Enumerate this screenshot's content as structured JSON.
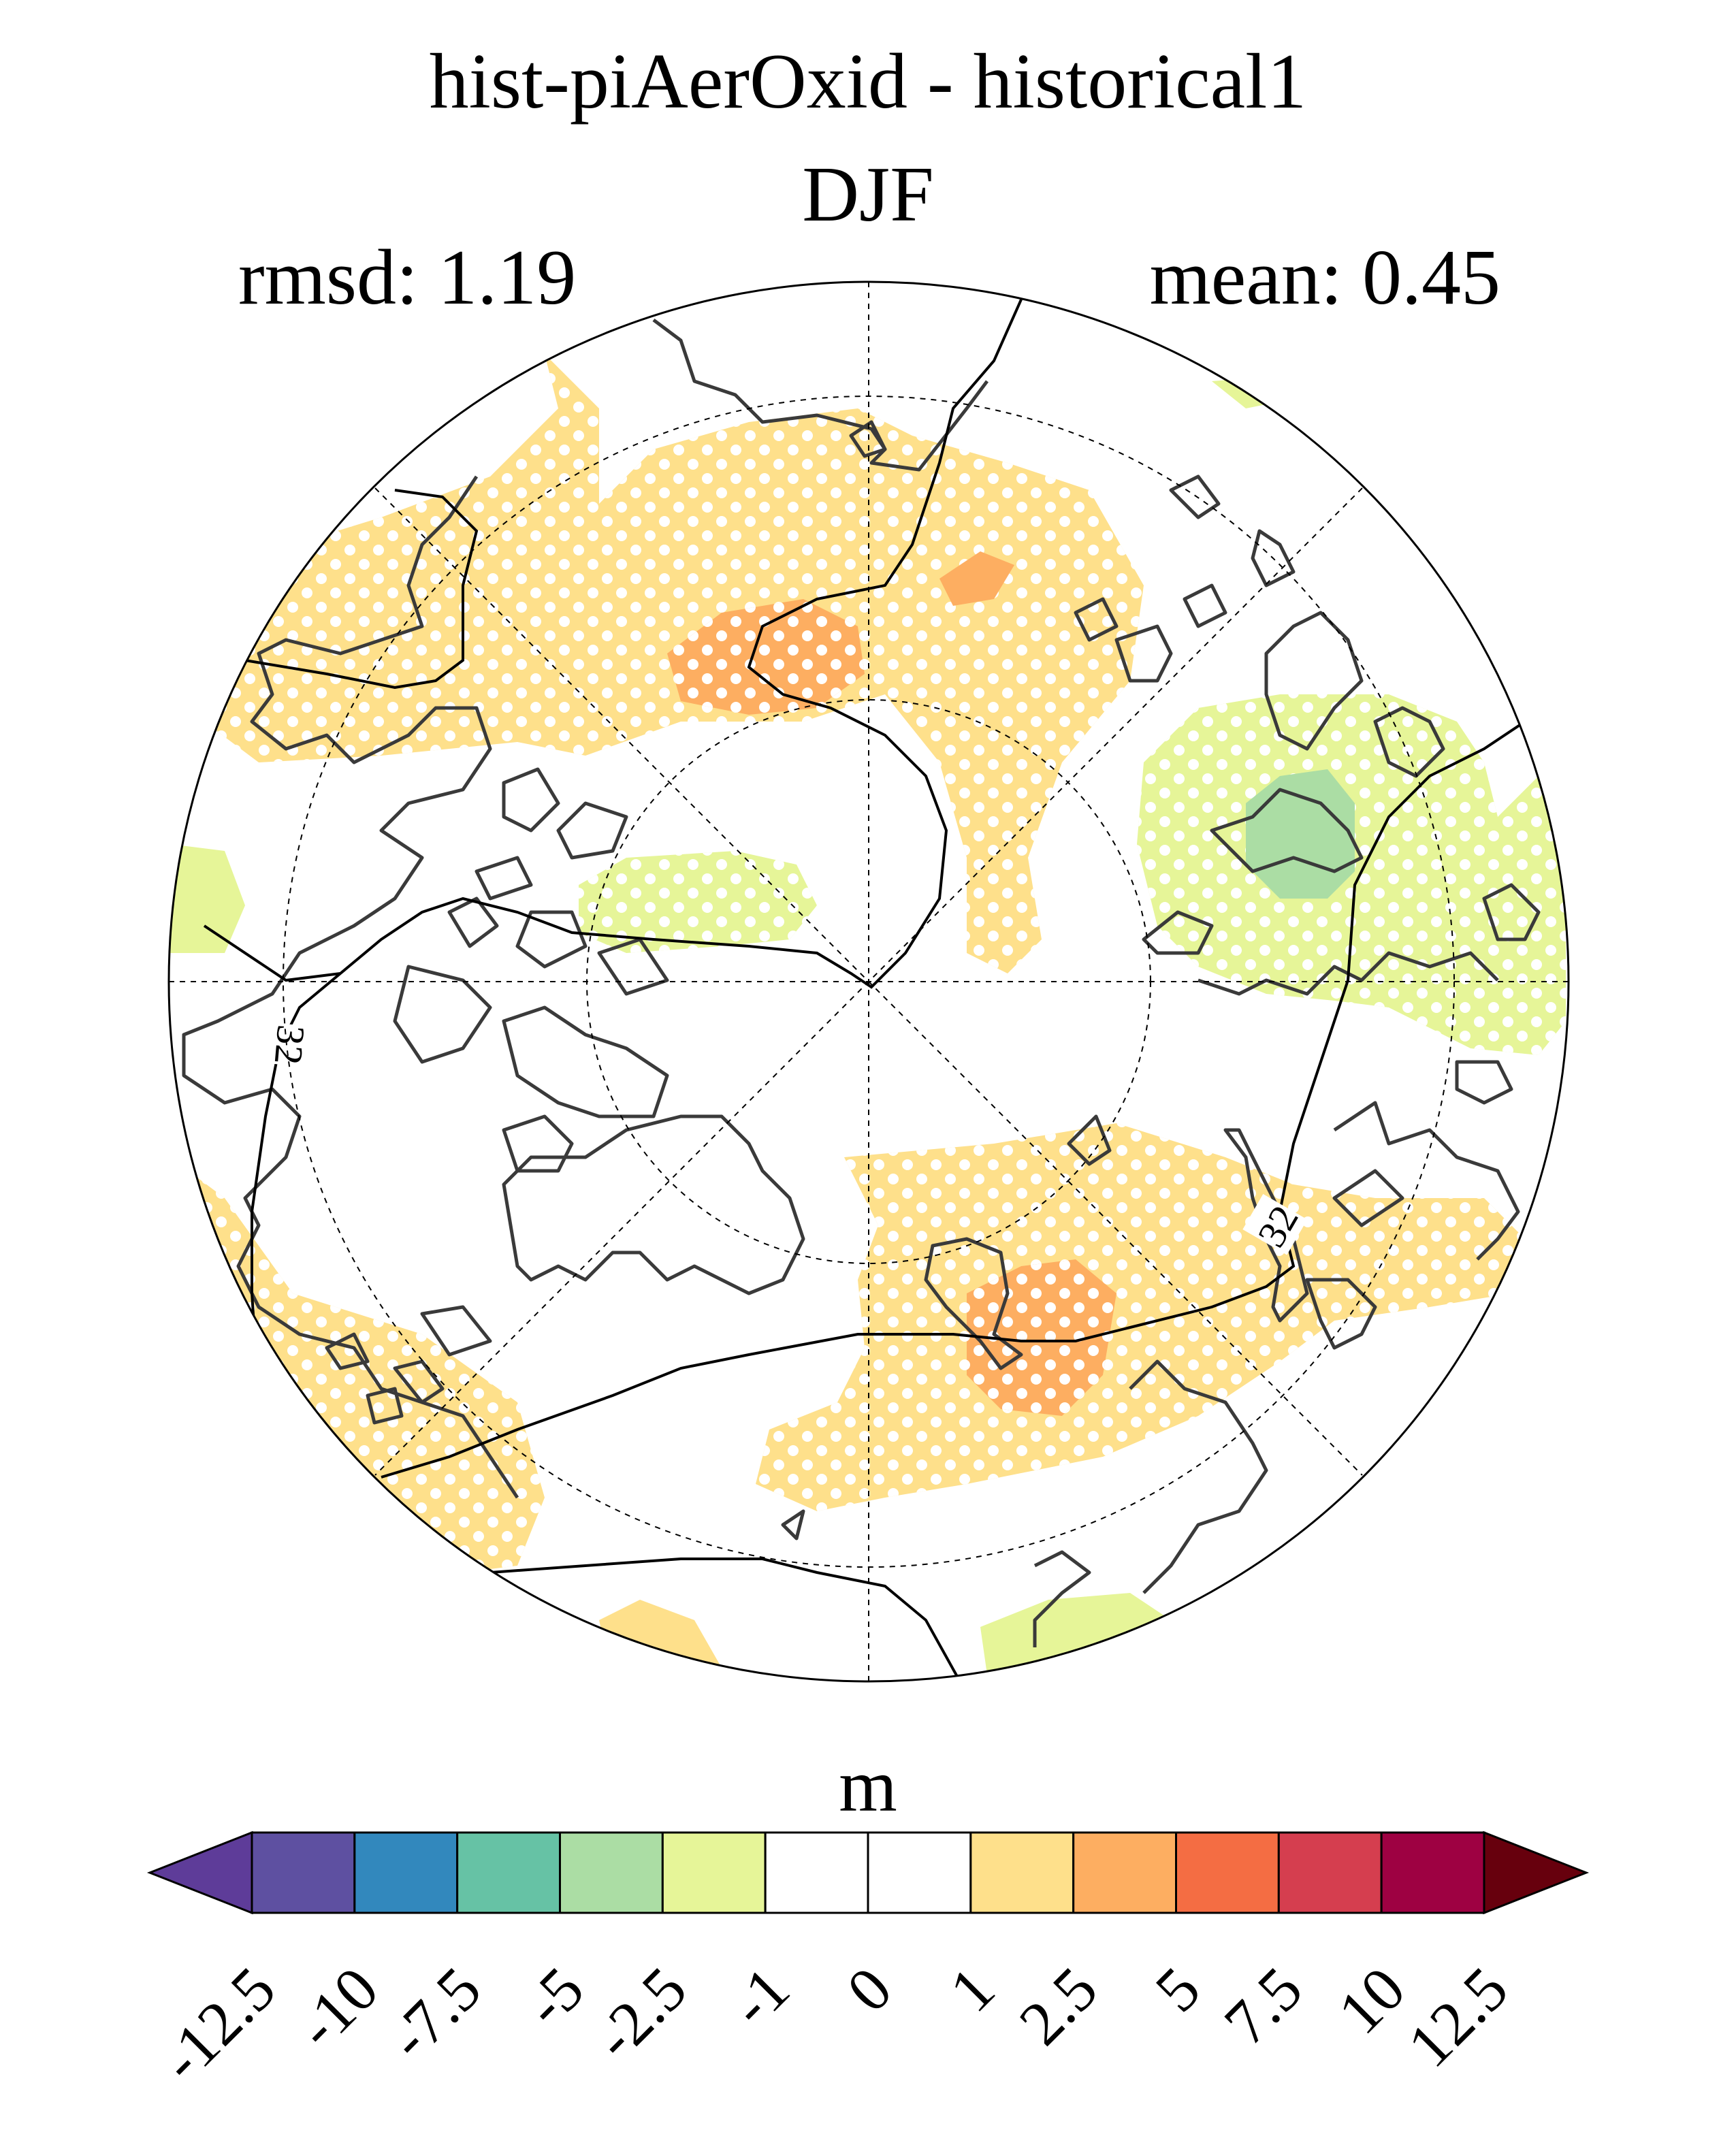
{
  "title": "hist-piAerOxid - historical1",
  "subtitle": "DJF",
  "stats": {
    "rmsd": "rmsd: 1.19",
    "mean": "mean: 0.45"
  },
  "contour_label": "32",
  "colorbar": {
    "units": "m",
    "ticks": [
      "-12.5",
      "-10",
      "-7.5",
      "-5",
      "-2.5",
      "-1",
      "0",
      "1",
      "2.5",
      "5",
      "7.5",
      "10",
      "12.5"
    ],
    "bins": [
      {
        "color": "#5e3c99"
      },
      {
        "color": "#5e50a1"
      },
      {
        "color": "#3288bd"
      },
      {
        "color": "#66c2a5"
      },
      {
        "color": "#abdda4"
      },
      {
        "color": "#e6f598"
      },
      {
        "color": "#ffffff"
      },
      {
        "color": "#ffffff"
      },
      {
        "color": "#fee08b"
      },
      {
        "color": "#fdae61"
      },
      {
        "color": "#f46d43"
      },
      {
        "color": "#d53e4f"
      },
      {
        "color": "#9e0142"
      },
      {
        "color": "#67000d"
      }
    ]
  },
  "colors": {
    "land_outline": "#3a3a3a",
    "contour": "#000000",
    "stipple": "#ffffff"
  }
}
